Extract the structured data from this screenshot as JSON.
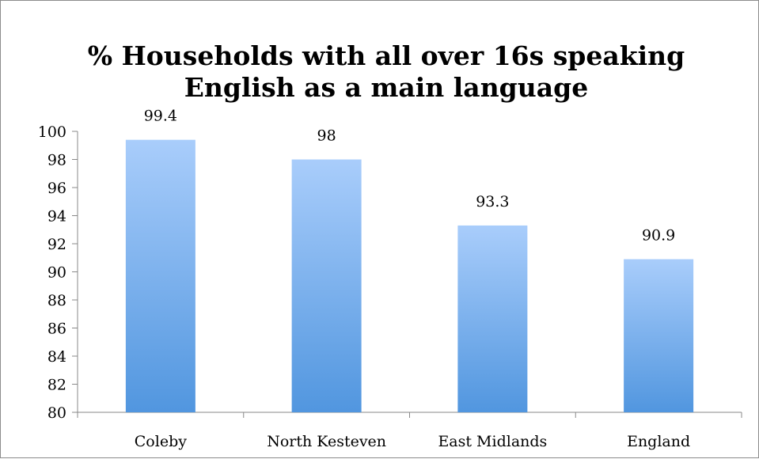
{
  "chart_data": {
    "type": "bar",
    "title_lines": [
      "% Households with all over 16s speaking",
      "English as a main language"
    ],
    "categories": [
      "Coleby",
      "North Kesteven",
      "East Midlands",
      "England"
    ],
    "values": [
      99.4,
      98,
      93.3,
      90.9
    ],
    "value_labels": [
      "99.4",
      "98",
      "93.3",
      "90.9"
    ],
    "ylim": [
      80,
      100
    ],
    "yticks": [
      "80",
      "82",
      "84",
      "86",
      "88",
      "90",
      "92",
      "94",
      "96",
      "98",
      "100"
    ],
    "xlabel": "",
    "ylabel": "",
    "grid": false,
    "legend": "none",
    "bar_gradient": [
      "#a9cdfb",
      "#5196df"
    ]
  }
}
